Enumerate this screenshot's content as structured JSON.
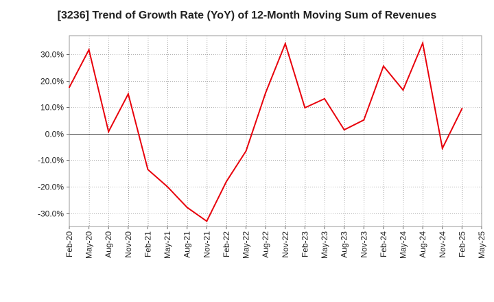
{
  "chart_data": {
    "type": "line",
    "title": "[3236]  Trend of Growth Rate (YoY) of 12-Month Moving Sum of Revenues",
    "xlabel": "",
    "ylabel": "",
    "ylim": [
      -35,
      37
    ],
    "y_ticks": [
      30,
      20,
      10,
      0,
      -10,
      -20,
      -30
    ],
    "y_tick_labels": [
      "30.0%",
      "20.0%",
      "10.0%",
      "0.0%",
      "-10.0%",
      "-20.0%",
      "-30.0%"
    ],
    "x_tick_labels": [
      "Feb-20",
      "May-20",
      "Aug-20",
      "Nov-20",
      "Feb-21",
      "May-21",
      "Aug-21",
      "Nov-21",
      "Feb-22",
      "May-22",
      "Aug-22",
      "Nov-22",
      "Feb-23",
      "May-23",
      "Aug-23",
      "Nov-23",
      "Feb-24",
      "May-24",
      "Aug-24",
      "Nov-24",
      "Feb-25",
      "May-25"
    ],
    "grid": true,
    "zero_line": true,
    "line_color": "#e8000b",
    "series": [
      {
        "values": [
          17.5,
          31.7,
          0.8,
          15.0,
          -13.5,
          -20.0,
          -27.8,
          -33.0,
          -18.0,
          -6.5,
          15.5,
          34.0,
          9.8,
          13.2,
          1.5,
          5.2,
          25.5,
          16.5,
          34.2,
          -5.5,
          9.5
        ]
      }
    ]
  }
}
